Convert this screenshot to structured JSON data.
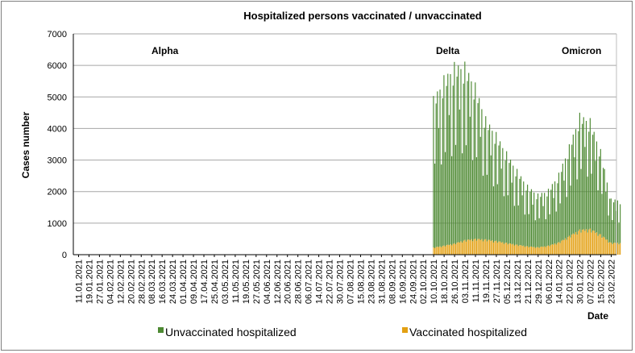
{
  "chart_data": {
    "type": "bar",
    "stacked": true,
    "title": "Hospitalized  persons vaccinated /  unvaccinated",
    "ylabel": "Cases number",
    "xlabel": "Date",
    "ylim": [
      0,
      7000
    ],
    "yticks": [
      0,
      1000,
      2000,
      3000,
      4000,
      5000,
      6000,
      7000
    ],
    "grid": true,
    "x_tick_labels": [
      "11.01.2021",
      "19.01.2021",
      "27.01.2021",
      "04.02.2021",
      "12.02.2021",
      "20.02.2021",
      "28.02.2021",
      "08.03.2021",
      "16.03.2021",
      "24.03.2021",
      "01.04.2021",
      "09.04.2021",
      "17.04.2021",
      "25.04.2021",
      "03.05.2021",
      "11.05.2021",
      "19.05.2021",
      "27.05.2021",
      "04.06.2021",
      "12.06.2021",
      "20.06.2021",
      "28.06.2021",
      "06.07.2021",
      "14.07.2021",
      "22.07.2021",
      "30.07.2021",
      "07.08.2021",
      "15.08.2021",
      "23.08.2021",
      "31.08.2021",
      "08.09.2021",
      "16.09.2021",
      "24.09.2021",
      "02.10.2021",
      "10.10.2021",
      "18.10.2021",
      "26.10.2021",
      "03.11.2021",
      "11.11.2021",
      "19.11.2021",
      "27.11.2021",
      "05.12.2021",
      "13.12.2021",
      "21.12.2021",
      "29.12.2021",
      "06.01.2022",
      "14.01.2022",
      "22.01.2022",
      "30.01.2022",
      "07.02.2022",
      "15.02.2022",
      "23.02.2022"
    ],
    "annotations": [
      "Alpha",
      "Delta",
      "Omicron"
    ],
    "weekly": [
      {
        "week": "10.10.2021",
        "unvaccinated": 4800,
        "vaccinated": 230
      },
      {
        "week": "18.10.2021",
        "unvaccinated": 5400,
        "vaccinated": 290
      },
      {
        "week": "26.10.2021",
        "unvaccinated": 5750,
        "vaccinated": 360
      },
      {
        "week": "03.11.2021",
        "unvaccinated": 5650,
        "vaccinated": 470
      },
      {
        "week": "11.11.2021",
        "unvaccinated": 4950,
        "vaccinated": 510
      },
      {
        "week": "19.11.2021",
        "unvaccinated": 3900,
        "vaccinated": 490
      },
      {
        "week": "27.11.2021",
        "unvaccinated": 3450,
        "vaccinated": 440
      },
      {
        "week": "05.12.2021",
        "unvaccinated": 2900,
        "vaccinated": 380
      },
      {
        "week": "13.12.2021",
        "unvaccinated": 2400,
        "vaccinated": 320
      },
      {
        "week": "21.12.2021",
        "unvaccinated": 1950,
        "vaccinated": 270
      },
      {
        "week": "29.12.2021",
        "unvaccinated": 1700,
        "vaccinated": 240
      },
      {
        "week": "06.01.2022",
        "unvaccinated": 1800,
        "vaccinated": 290
      },
      {
        "week": "14.01.2022",
        "unvaccinated": 2200,
        "vaccinated": 400
      },
      {
        "week": "22.01.2022",
        "unvaccinated": 2900,
        "vaccinated": 600
      },
      {
        "week": "30.01.2022",
        "unvaccinated": 3700,
        "vaccinated": 800
      },
      {
        "week": "07.02.2022",
        "unvaccinated": 3500,
        "vaccinated": 830
      },
      {
        "week": "15.02.2022",
        "unvaccinated": 2700,
        "vaccinated": 650
      },
      {
        "week": "23.02.2022",
        "unvaccinated": 1400,
        "vaccinated": 380
      }
    ],
    "series": [
      {
        "name": "Unvaccinated hospitalized",
        "color": "#4e8a33"
      },
      {
        "name": "Vaccinated hospitalized",
        "color": "#e3a012"
      }
    ],
    "legend_position": "bottom"
  }
}
